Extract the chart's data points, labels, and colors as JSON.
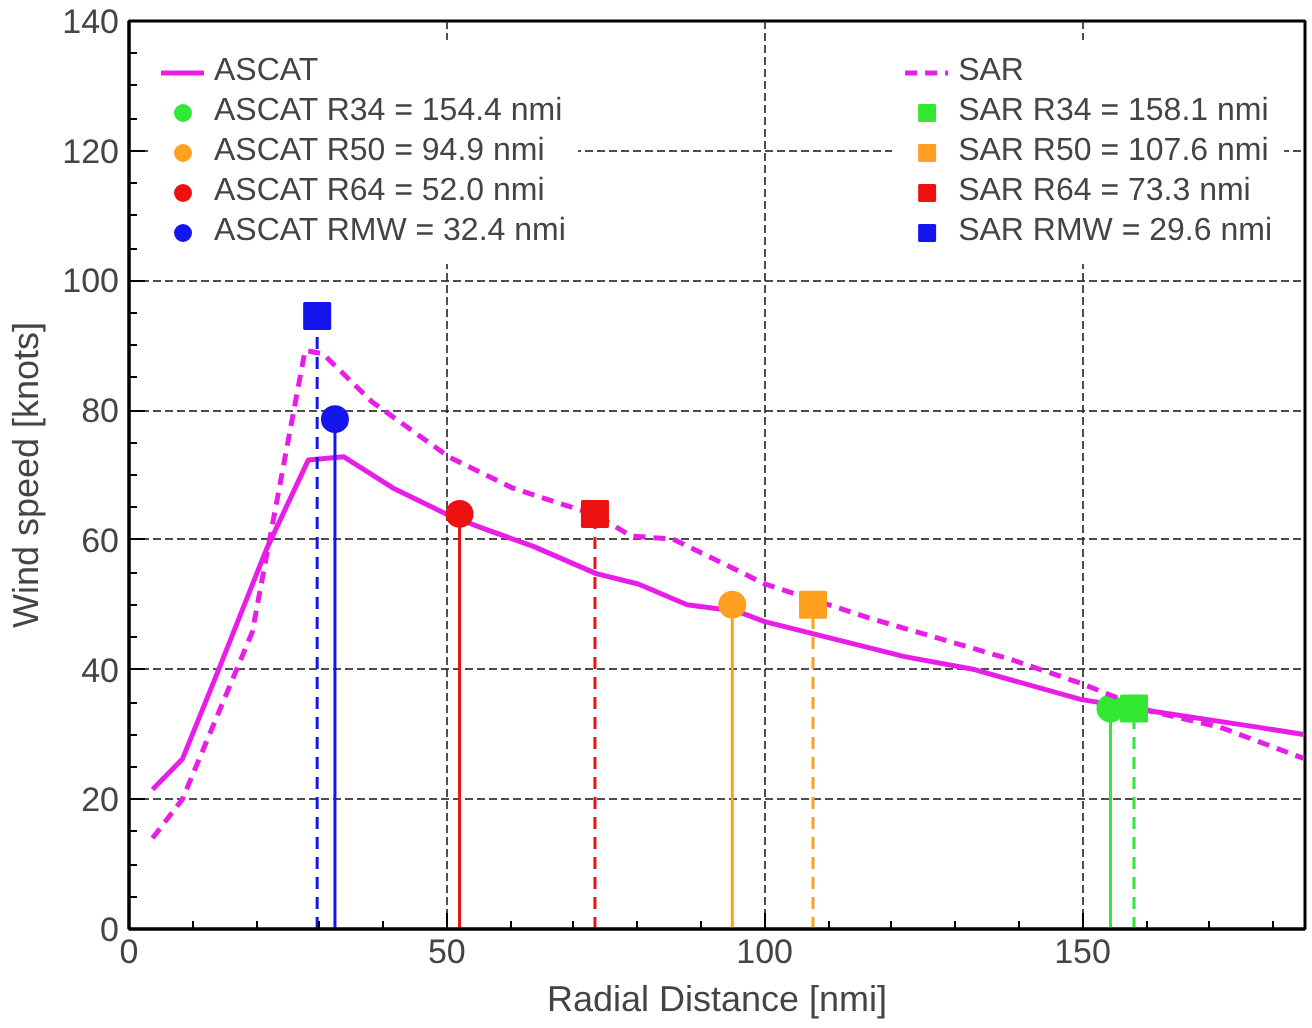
{
  "chart_data": {
    "type": "line",
    "xlabel": "Radial Distance [nmi]",
    "ylabel": "Wind speed [knots]",
    "xlim": [
      0,
      185
    ],
    "xticks": [
      0,
      50,
      100,
      150
    ],
    "ylim": [
      0,
      140
    ],
    "yticks": [
      0,
      20,
      40,
      60,
      80,
      100,
      120,
      140
    ],
    "grid": true,
    "legend": "top",
    "line_style": "solid",
    "marker": "none",
    "series": [
      {
        "name": "ASCAT",
        "color": "#e81ee8",
        "x": [
          3.7,
          8.4,
          13.9,
          21.6,
          28.2,
          33.8,
          41.5,
          50.3,
          55.9,
          63.6,
          73.5,
          80.1,
          87.8,
          95.6,
          100,
          122,
          133,
          149.7,
          160.7,
          177,
          184.8
        ],
        "values": [
          21.5,
          26.2,
          39.5,
          58.5,
          72.3,
          72.8,
          68,
          63.8,
          61.7,
          59,
          54.8,
          53.2,
          50,
          49,
          47.4,
          42,
          40,
          35.4,
          33.6,
          31.2,
          30
        ]
      },
      {
        "name": "ASCAT R34 = 154.4 nmi",
        "type": "lollipop",
        "color": "#33e833",
        "marker": "circle",
        "x": [
          154.4
        ],
        "values": [
          34
        ]
      },
      {
        "name": "ASCAT R50 = 94.9 nmi",
        "type": "lollipop",
        "color": "#ffa020",
        "marker": "circle",
        "x": [
          94.9
        ],
        "values": [
          50
        ]
      },
      {
        "name": "ASCAT R64 = 52.0 nmi",
        "type": "lollipop",
        "color": "#ee1111",
        "marker": "circle",
        "x": [
          52.0
        ],
        "values": [
          64
        ]
      },
      {
        "name": "ASCAT RMW = 32.4 nmi",
        "type": "lollipop",
        "color": "#1515ee",
        "marker": "circle",
        "x": [
          32.4
        ],
        "values": [
          78.6
        ]
      },
      {
        "name": "SAR",
        "color": "#e81ee8",
        "line_style": "dashed",
        "x": [
          3.7,
          8.4,
          19.4,
          27.7,
          30.5,
          38.2,
          50.3,
          60.3,
          73.5,
          79,
          85.6,
          96.7,
          100,
          116.6,
          138.6,
          149.7,
          160.7,
          171.7,
          184.8
        ],
        "values": [
          14,
          20,
          45.8,
          89.2,
          88.7,
          81.3,
          72.8,
          68,
          63.8,
          60.6,
          60.1,
          54.8,
          53.2,
          47.9,
          41.6,
          37.9,
          33.6,
          31.1,
          26.3
        ]
      },
      {
        "name": "SAR R34 = 158.1 nmi",
        "type": "lollipop",
        "color": "#33e833",
        "marker": "square",
        "line_style": "dashed",
        "x": [
          158.1
        ],
        "values": [
          34
        ]
      },
      {
        "name": "SAR R50 = 107.6 nmi",
        "type": "lollipop",
        "color": "#ffa020",
        "marker": "square",
        "line_style": "dashed",
        "x": [
          107.6
        ],
        "values": [
          50
        ]
      },
      {
        "name": "SAR R64 = 73.3 nmi",
        "type": "lollipop",
        "color": "#ee1111",
        "marker": "square",
        "line_style": "dashed",
        "x": [
          73.3
        ],
        "values": [
          64
        ]
      },
      {
        "name": "SAR RMW = 29.6 nmi",
        "type": "lollipop",
        "color": "#1515ee",
        "marker": "square",
        "line_style": "dashed",
        "x": [
          29.6
        ],
        "values": [
          94.5
        ]
      }
    ]
  }
}
